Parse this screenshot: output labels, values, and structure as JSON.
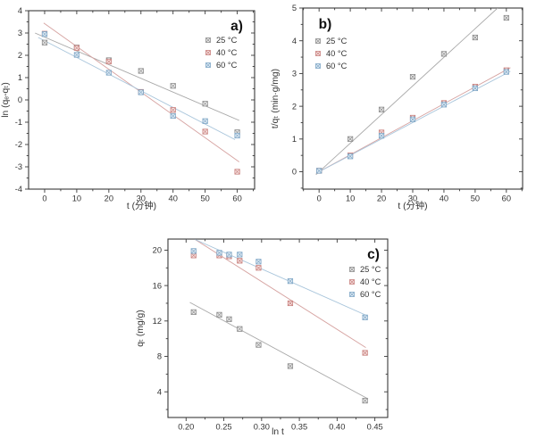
{
  "figure": {
    "background": "#ffffff",
    "frame_color": "#3a3a3a",
    "text_color": "#333333",
    "series_styles": {
      "gray": {
        "marker_stroke": "#8c8c8c",
        "marker_fill": "#eeeeee",
        "line": "#a8a8a8"
      },
      "red": {
        "marker_stroke": "#c9807d",
        "marker_fill": "#f6e4e3",
        "line": "#d6a3a1"
      },
      "blue": {
        "marker_stroke": "#7ea6c6",
        "marker_fill": "#e3edf5",
        "line": "#a8c5db"
      }
    },
    "legend_labels": [
      "25 °C",
      "40 °C",
      "60 °C"
    ]
  },
  "chart_data": [
    {
      "id": "a",
      "type": "scatter",
      "panel_label": "a)",
      "xlabel": "t (分钟)",
      "ylabel": "ln (qₑ-qₜ)",
      "xlim": [
        -5,
        65.4
      ],
      "ylim": [
        -4,
        4
      ],
      "xtick_values": [
        0,
        10,
        20,
        30,
        40,
        50,
        60
      ],
      "xtick_labels": [
        "0",
        "10",
        "20",
        "30",
        "40",
        "50",
        "60"
      ],
      "ytick_values": [
        -4,
        -3,
        -2,
        -1,
        0,
        1,
        2,
        3,
        4
      ],
      "ytick_labels": [
        "-4",
        "-3",
        "-2",
        "-1",
        "0",
        "1",
        "2",
        "3",
        "4"
      ],
      "legend_position": "top-right",
      "series": [
        {
          "name": "25 °C",
          "color": "gray",
          "x": [
            0,
            10,
            20,
            30,
            40,
            50,
            60
          ],
          "y": [
            2.57,
            2.35,
            1.78,
            1.3,
            0.63,
            -0.17,
            -1.45
          ],
          "fit_line": {
            "x1": -3.0,
            "y1": 3.0,
            "x2": 60.6,
            "y2": -0.92
          }
        },
        {
          "name": "40 °C",
          "color": "red",
          "x": [
            0,
            10,
            20,
            30,
            40,
            50,
            60
          ],
          "y": [
            2.97,
            2.33,
            1.72,
            0.36,
            -0.45,
            -1.42,
            -3.22
          ],
          "fit_line": {
            "x1": -0.3,
            "y1": 3.45,
            "x2": 60.6,
            "y2": -2.78
          }
        },
        {
          "name": "60 °C",
          "color": "blue",
          "x": [
            0,
            10,
            20,
            30,
            40,
            50,
            60
          ],
          "y": [
            2.95,
            2.02,
            1.22,
            0.34,
            -0.72,
            -0.95,
            -1.6
          ],
          "fit_line": {
            "x1": -2.0,
            "y1": 2.8,
            "x2": 59.3,
            "y2": -1.78
          }
        }
      ]
    },
    {
      "id": "b",
      "type": "scatter",
      "panel_label": "b)",
      "xlabel": "t (分钟)",
      "ylabel": "t/qₜ (min·g/mg)",
      "xlim": [
        -5.2,
        65.2
      ],
      "ylim": [
        -0.53,
        5
      ],
      "xtick_values": [
        0,
        10,
        20,
        30,
        40,
        50,
        60
      ],
      "xtick_labels": [
        "0",
        "10",
        "20",
        "30",
        "40",
        "50",
        "60"
      ],
      "ytick_values": [
        0,
        1,
        2,
        3,
        4,
        5
      ],
      "ytick_labels": [
        "0",
        "1",
        "2",
        "3",
        "4",
        "5"
      ],
      "legend_position": "top-left",
      "series": [
        {
          "name": "25 °C",
          "color": "gray",
          "x": [
            0,
            10,
            20,
            30,
            40,
            50,
            60
          ],
          "y": [
            0.03,
            1.0,
            1.9,
            2.9,
            3.6,
            4.1,
            4.7
          ],
          "fit_line": {
            "x1": -1.0,
            "y1": -0.09,
            "x2": 57.2,
            "y2": 5.0
          }
        },
        {
          "name": "40 °C",
          "color": "red",
          "x": [
            0,
            10,
            20,
            30,
            40,
            50,
            60
          ],
          "y": [
            0.03,
            0.5,
            1.2,
            1.65,
            2.1,
            2.6,
            3.1
          ],
          "fit_line": {
            "x1": -1.0,
            "y1": -0.05,
            "x2": 61.3,
            "y2": 3.18
          }
        },
        {
          "name": "60 °C",
          "color": "blue",
          "x": [
            0,
            10,
            20,
            30,
            40,
            50,
            60
          ],
          "y": [
            0.03,
            0.47,
            1.1,
            1.6,
            2.05,
            2.55,
            3.05
          ],
          "fit_line": {
            "x1": -1.0,
            "y1": -0.05,
            "x2": 61.3,
            "y2": 3.07
          }
        }
      ]
    },
    {
      "id": "c",
      "type": "scatter",
      "panel_label": "c)",
      "xlabel": "ln t",
      "ylabel": "qₜ (mg/g)",
      "xlim": [
        0.176,
        0.467
      ],
      "ylim": [
        1.1,
        21.25
      ],
      "xtick_values": [
        0.2,
        0.25,
        0.3,
        0.35,
        0.4,
        0.45
      ],
      "xtick_labels": [
        "0.20",
        "0.25",
        "0.30",
        "0.35",
        "0.40",
        "0.45"
      ],
      "ytick_values": [
        4,
        8,
        12,
        16,
        20
      ],
      "ytick_labels": [
        "4",
        "8",
        "12",
        "16",
        "20"
      ],
      "legend_position": "right",
      "series": [
        {
          "name": "25 °C",
          "color": "gray",
          "x": [
            0.21,
            0.244,
            0.257,
            0.271,
            0.296,
            0.338,
            0.437
          ],
          "y": [
            13.0,
            12.7,
            12.2,
            11.1,
            9.3,
            6.9,
            3.0
          ],
          "fit_line": {
            "x1": 0.205,
            "y1": 14.1,
            "x2": 0.441,
            "y2": 3.2
          }
        },
        {
          "name": "40 °C",
          "color": "red",
          "x": [
            0.21,
            0.244,
            0.257,
            0.271,
            0.296,
            0.338,
            0.437
          ],
          "y": [
            19.4,
            19.4,
            19.3,
            18.8,
            18.0,
            14.0,
            8.4
          ],
          "fit_line": {
            "x1": 0.212,
            "y1": 21.2,
            "x2": 0.438,
            "y2": 9.0
          }
        },
        {
          "name": "60 °C",
          "color": "blue",
          "x": [
            0.21,
            0.244,
            0.257,
            0.271,
            0.296,
            0.338,
            0.437
          ],
          "y": [
            19.9,
            19.7,
            19.5,
            19.5,
            18.7,
            16.5,
            12.4
          ],
          "fit_line": {
            "x1": 0.212,
            "y1": 21.2,
            "x2": 0.441,
            "y2": 12.55
          }
        }
      ]
    }
  ]
}
